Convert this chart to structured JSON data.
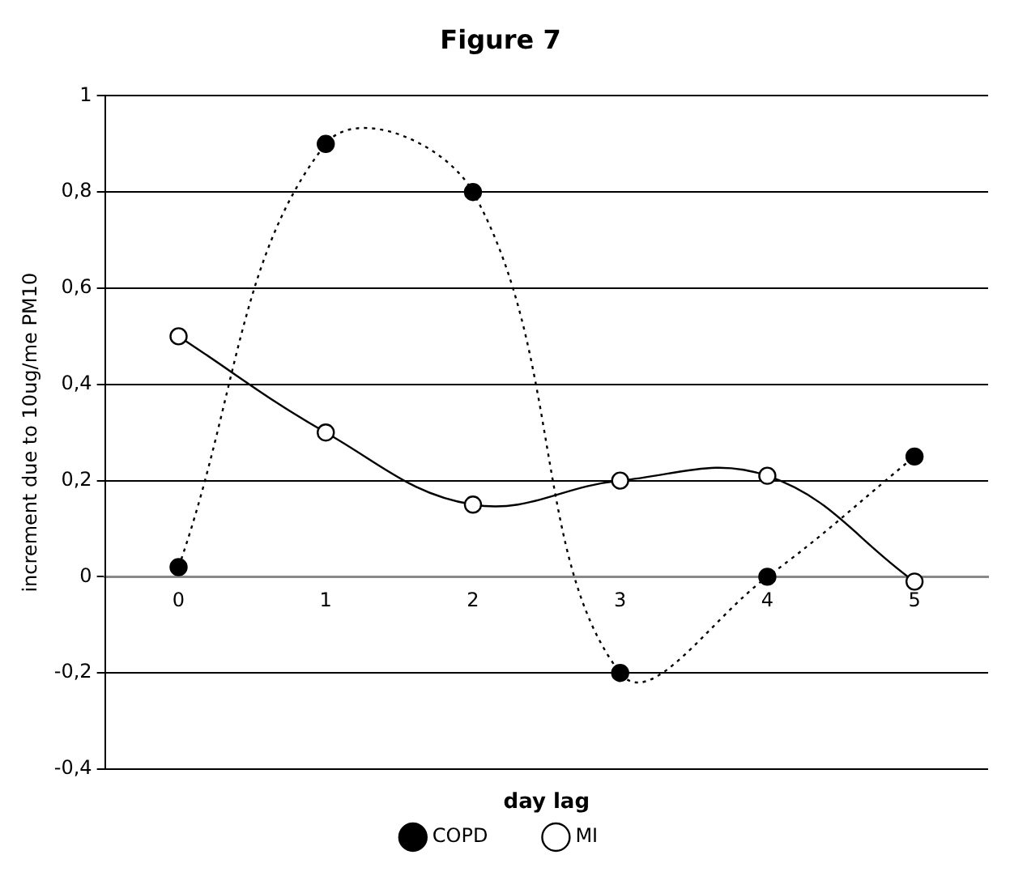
{
  "chart_data": {
    "type": "line",
    "title": "Figure 7",
    "xlabel": "day lag",
    "ylabel": "increment due to 10ug/me PM10",
    "categories": [
      "0",
      "1",
      "2",
      "3",
      "4",
      "5"
    ],
    "series": [
      {
        "name": "COPD",
        "color": "#000000",
        "values": [
          0.02,
          0.9,
          0.8,
          -0.2,
          0,
          0.25
        ],
        "line_style": "dotted",
        "marker": "circle"
      },
      {
        "name": "MI",
        "color": "#000000",
        "values": [
          0.5,
          0.3,
          0.15,
          0.2,
          0.21,
          -0.01
        ],
        "line_style": "solid",
        "marker": "circle"
      }
    ],
    "ylim": [
      -0.4,
      1
    ],
    "yticks": [
      {
        "value": -0.4,
        "label": "-0,4"
      },
      {
        "value": -0.2,
        "label": "-0,2"
      },
      0,
      {
        "value": 0.2,
        "label": "0,2"
      },
      {
        "value": 0.4,
        "label": "0,4"
      },
      {
        "value": 0.6,
        "label": "0,6"
      },
      {
        "value": 0.8,
        "label": "0,8"
      },
      1
    ],
    "grid": "y",
    "legend": "bottom"
  }
}
